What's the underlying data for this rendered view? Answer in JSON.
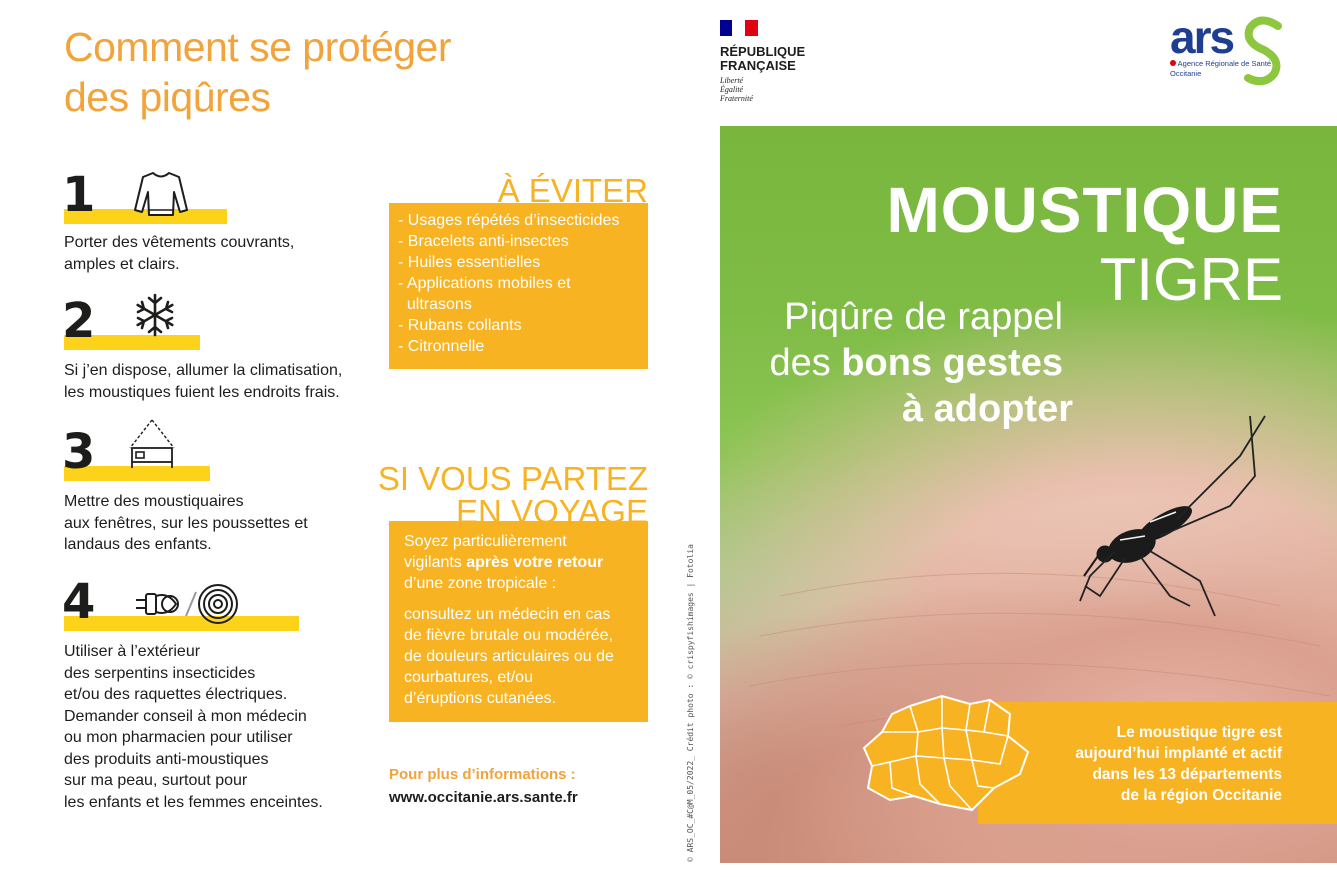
{
  "title_lines": [
    "Comment se protéger",
    "des piqûres"
  ],
  "steps": [
    {
      "number": "1",
      "icon": "sweater-icon",
      "lines": [
        "Porter des vêtements couvrants,",
        "amples et clairs."
      ]
    },
    {
      "number": "2",
      "icon": "snowflake-icon",
      "lines": [
        "Si j’en dispose, allumer la climatisation,",
        "les moustiques fuient les endroits frais."
      ]
    },
    {
      "number": "3",
      "icon": "mosquito-net-bed-icon",
      "lines": [
        "Mettre des moustiquaires",
        "aux fenêtres, sur les poussettes et",
        "landaus des enfants."
      ]
    },
    {
      "number": "4",
      "icon": "plug-and-coil-icon",
      "lines": [
        "Utiliser à l’extérieur",
        "des serpentins insecticides",
        "et/ou des raquettes électriques.",
        "Demander conseil à mon médecin",
        "ou mon pharmacien pour utiliser",
        "des produits anti-moustiques",
        "sur ma peau, surtout pour",
        "les enfants et les femmes enceintes."
      ]
    }
  ],
  "avoid": {
    "heading": "À ÉVITER",
    "items": [
      "- Usages répétés d’insecticides",
      "- Bracelets anti-insectes",
      "- Huiles essentielles",
      "- Applications mobiles et",
      "  ultrasons",
      "- Rubans collants",
      "- Citronnelle"
    ]
  },
  "travel": {
    "heading_lines": [
      "SI VOUS PARTEZ",
      "EN VOYAGE"
    ],
    "line1": "Soyez particulièrement",
    "line2_pre": "vigilants ",
    "line2_bold": "après votre retour",
    "line3": "d’une zone tropicale :",
    "advice_lines": [
      "consultez un médecin en cas",
      "de fièvre brutale ou modérée,",
      "de douleurs articulaires ou de",
      "courbatures, et/ou",
      "d’éruptions cutanées."
    ]
  },
  "more_info": {
    "label": "Pour plus d’informations :",
    "url": "www.occitanie.ars.sante.fr"
  },
  "credit": "© ARS_OC_#C@M_05/2022_ Crédit photo : © crispyfishimages | Fotolia",
  "republique": {
    "line1": "RÉPUBLIQUE",
    "line2": "FRANÇAISE",
    "motto": [
      "Liberté",
      "Égalité",
      "Fraternité"
    ]
  },
  "ars_logo": {
    "letters": "ars",
    "tagline": "Agence Régionale de Santé",
    "region": "Occitanie"
  },
  "cover": {
    "title": "MOUSTIQUE",
    "subtitle": "TIGRE",
    "tagline_line1": "Piqûre de rappel",
    "tagline_line2_pre": "des ",
    "tagline_line2_bold": "bons gestes",
    "tagline_line3": "à adopter",
    "info_lines": [
      "Le moustique tigre est",
      "aujourd’hui implanté et actif",
      "dans les 13 départements",
      "de la région Occitanie"
    ]
  },
  "colors": {
    "orange": "#f8b323",
    "title_orange": "#f2a33a",
    "yellow": "#fcd21a",
    "ars_blue": "#1e3f91",
    "ars_green": "#8dc63f"
  }
}
